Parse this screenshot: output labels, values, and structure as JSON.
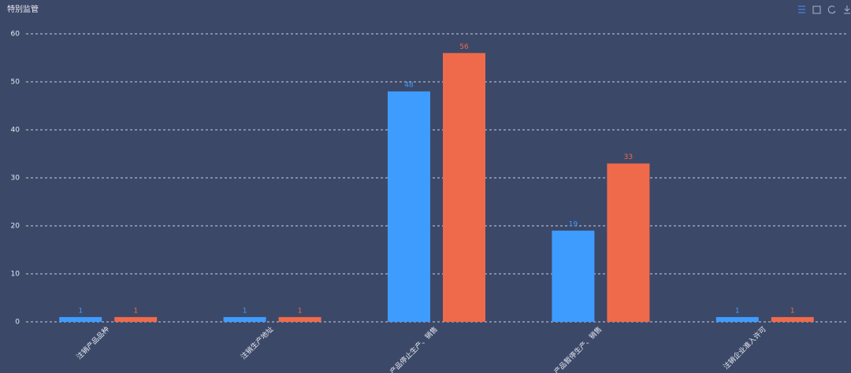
{
  "chart_data": {
    "type": "bar",
    "title": "特别监管",
    "categories": [
      "注销产品品种",
      "注销生产地址",
      "产品停止生产、销售",
      "产品暂停生产、销售",
      "注销企业准入许可"
    ],
    "series": [
      {
        "color": "#3e9cff",
        "values": [
          1,
          1,
          48,
          19,
          1
        ]
      },
      {
        "color": "#ef6a4a",
        "values": [
          1,
          1,
          56,
          33,
          1
        ]
      }
    ],
    "ylim": [
      0,
      60
    ],
    "yticks": [
      0,
      10,
      20,
      30,
      40,
      50,
      60
    ],
    "grid": true
  }
}
